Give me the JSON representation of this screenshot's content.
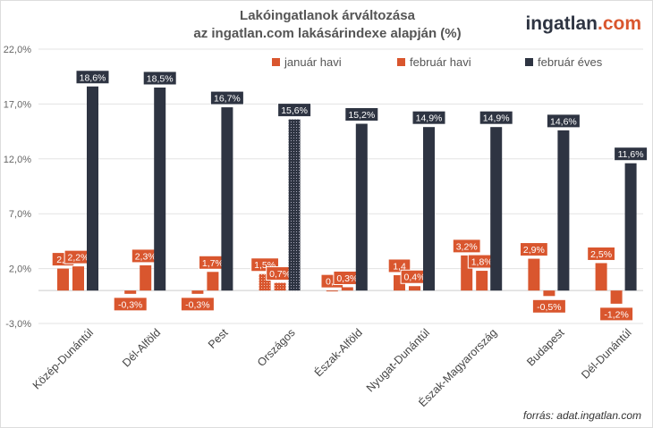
{
  "title_line1": "Lakóingatlanok árváltozása",
  "title_line2": "az ingatlan.com lakásárindexe alapján (%)",
  "logo": {
    "main": "ingatlan",
    "suffix": ".com"
  },
  "source": "forrás: adat.ingatlan.com",
  "chart_data": {
    "type": "bar",
    "categories": [
      "Közép-Dunántúl",
      "Dél-Alföld",
      "Pest",
      "Országos",
      "Észak-Alföld",
      "Nyugat-Dunántúl",
      "Észak-Magyarország",
      "Budapest",
      "Dél-Dunántúl"
    ],
    "series": [
      {
        "name": "január havi",
        "color": "#d9562e",
        "values": [
          2.0,
          -0.3,
          -0.3,
          1.5,
          0.0,
          1.4,
          3.2,
          2.9,
          2.5
        ],
        "labels": [
          "2,0",
          "-0,3%",
          "-0,3%",
          "1,5%",
          "0,0",
          "1,4",
          "3,2%",
          "2,9%",
          "2,5%"
        ]
      },
      {
        "name": "február havi",
        "color": "#d9562e",
        "values": [
          2.2,
          2.3,
          1.7,
          0.7,
          0.3,
          0.4,
          1.8,
          -0.5,
          -1.2
        ],
        "labels": [
          "2,2%",
          "2,3%",
          "1,7%",
          "0,7%",
          "0,3%",
          "0,4%",
          "1,8%",
          "-0,5%",
          "-1,2%"
        ]
      },
      {
        "name": "február éves",
        "color": "#2e3442",
        "values": [
          18.6,
          18.5,
          16.7,
          15.6,
          15.2,
          14.9,
          14.9,
          14.6,
          11.6
        ],
        "labels": [
          "18,6%",
          "18,5%",
          "16,7%",
          "15,6%",
          "15,2%",
          "14,9%",
          "14,9%",
          "14,6%",
          "11,6%"
        ]
      }
    ],
    "highlighted_category": "Országos",
    "yticks": [
      "-3,0%",
      "2,0%",
      "7,0%",
      "12,0%",
      "17,0%",
      "22,0%"
    ],
    "ylim": [
      -3,
      22
    ],
    "grid": true,
    "legend": "top"
  }
}
